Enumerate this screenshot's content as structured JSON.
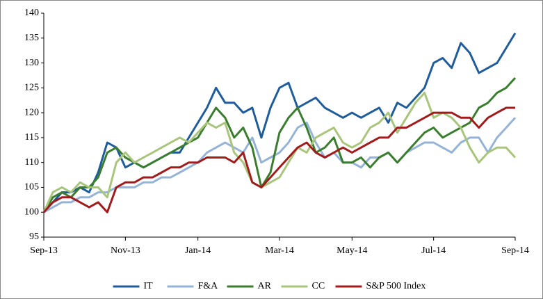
{
  "chart_data": {
    "type": "line",
    "categories": [
      "Sep-13",
      null,
      null,
      null,
      null,
      null,
      null,
      null,
      null,
      "Nov-13",
      null,
      null,
      null,
      null,
      null,
      null,
      null,
      "Jan-14",
      null,
      null,
      null,
      null,
      null,
      null,
      null,
      null,
      "Mar-14",
      null,
      null,
      null,
      null,
      null,
      null,
      null,
      "May-14",
      null,
      null,
      null,
      null,
      null,
      null,
      null,
      null,
      "Jul-14",
      null,
      null,
      null,
      null,
      null,
      null,
      null,
      null,
      "Sep-14"
    ],
    "series": [
      {
        "name": "IT",
        "color": "#1f5c99",
        "values": [
          100,
          102,
          104,
          104,
          105,
          104,
          108,
          114,
          113,
          109,
          110,
          109,
          110,
          111,
          112,
          112,
          115,
          118,
          121,
          125,
          122,
          122,
          120,
          121,
          115,
          121,
          125,
          126,
          121,
          122,
          123,
          121,
          120,
          119,
          120,
          119,
          120,
          121,
          118,
          122,
          121,
          123,
          125,
          130,
          131,
          129,
          134,
          132,
          128,
          129,
          130,
          133,
          136
        ]
      },
      {
        "name": "F&A",
        "color": "#95b3d7",
        "values": [
          100,
          101,
          102,
          102,
          103,
          103,
          104,
          104,
          105,
          105,
          105,
          106,
          106,
          107,
          107,
          108,
          109,
          110,
          112,
          113,
          114,
          113,
          112,
          115,
          110,
          111,
          112,
          114,
          117,
          118,
          114,
          111,
          112,
          110,
          110,
          109,
          111,
          111,
          112,
          110,
          112,
          113,
          114,
          114,
          113,
          112,
          114,
          115,
          115,
          112,
          115,
          117,
          119
        ]
      },
      {
        "name": "AR",
        "color": "#3b7d2e",
        "values": [
          100,
          103,
          104,
          103,
          105,
          105,
          107,
          112,
          113,
          111,
          110,
          109,
          110,
          111,
          112,
          113,
          114,
          115,
          118,
          121,
          119,
          115,
          117,
          113,
          105,
          108,
          116,
          119,
          121,
          117,
          112,
          113,
          115,
          110,
          110,
          111,
          109,
          111,
          112,
          110,
          112,
          114,
          116,
          117,
          115,
          116,
          117,
          118,
          121,
          122,
          124,
          125,
          127
        ]
      },
      {
        "name": "CC",
        "color": "#a9c57c",
        "values": [
          100,
          104,
          105,
          104,
          106,
          105,
          105,
          103,
          110,
          112,
          110,
          111,
          112,
          113,
          114,
          115,
          114,
          116,
          118,
          117,
          118,
          112,
          110,
          106,
          105,
          106,
          107,
          110,
          113,
          112,
          115,
          116,
          117,
          114,
          113,
          114,
          117,
          118,
          120,
          116,
          119,
          122,
          124,
          119,
          120,
          119,
          117,
          113,
          110,
          112,
          113,
          113,
          111
        ]
      },
      {
        "name": "S&P 500 Index",
        "color": "#a01c1c",
        "values": [
          100,
          102,
          103,
          103,
          102,
          101,
          102,
          100,
          105,
          106,
          106,
          107,
          107,
          108,
          109,
          109,
          110,
          110,
          111,
          111,
          111,
          110,
          112,
          106,
          105,
          107,
          109,
          111,
          113,
          114,
          112,
          111,
          112,
          113,
          112,
          113,
          114,
          115,
          115,
          117,
          117,
          118,
          119,
          120,
          120,
          120,
          119,
          119,
          117,
          119,
          120,
          121,
          121
        ]
      }
    ],
    "ylim": [
      95,
      140
    ],
    "yticks": [
      95,
      100,
      105,
      110,
      115,
      120,
      125,
      130,
      135,
      140
    ],
    "grid": false,
    "legend": "bottom"
  }
}
